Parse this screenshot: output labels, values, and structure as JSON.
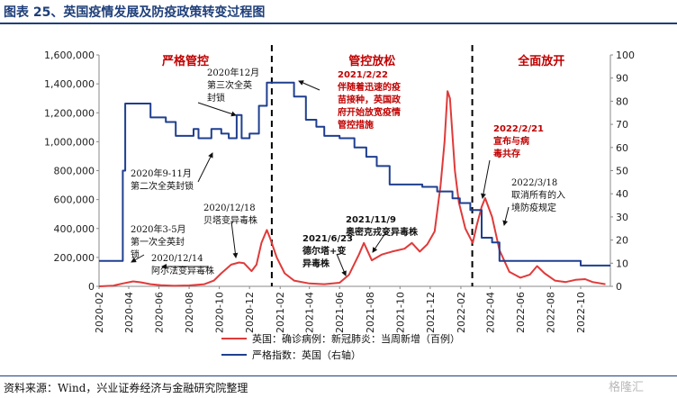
{
  "figure_title": "图表 25、英国疫情发展及防疫政策转变过程图",
  "source_note": "资料来源：Wind，兴业证券经济与金融研究院整理",
  "watermark": "格隆汇",
  "colors": {
    "cases": "#e03a3a",
    "index": "#1f3f8f",
    "title": "#1f3f7a",
    "phase": "#c00000"
  },
  "chart_data": {
    "type": "line",
    "y_left_ticks": [
      "0",
      "200,000",
      "400,000",
      "600,000",
      "800,000",
      "1,000,000",
      "1,200,000",
      "1,400,000",
      "1,600,000"
    ],
    "y_right_ticks": [
      "0",
      "10",
      "20",
      "30",
      "40",
      "50",
      "60",
      "70",
      "80",
      "90",
      "100"
    ],
    "ylim_left": [
      0,
      1600000
    ],
    "ylim_right": [
      0,
      100
    ],
    "xlim": [
      "2020-02-01",
      "2022-11-30"
    ],
    "x_tick_labels": [
      "2020-02",
      "2020-04",
      "2020-06",
      "2020-08",
      "2020-10",
      "2020-12",
      "2021-02",
      "2021-04",
      "2021-06",
      "2021-08",
      "2021-10",
      "2021-12",
      "2022-02",
      "2022-04",
      "2022-06",
      "2022-08",
      "2022-10"
    ],
    "phases": [
      {
        "label": "严格管控"
      },
      {
        "label": "管控放松"
      },
      {
        "label": "全面放开"
      }
    ],
    "phase_dividers": [
      "2021-01-15",
      "2022-02-24"
    ],
    "series": [
      {
        "name": "英国：确诊病例：新冠肺炎：当周新增（百例）",
        "axis": "left",
        "points": [
          [
            "2020-02-01",
            0
          ],
          [
            "2020-03-01",
            5000
          ],
          [
            "2020-03-20",
            20000
          ],
          [
            "2020-04-10",
            34000
          ],
          [
            "2020-04-25",
            28000
          ],
          [
            "2020-05-15",
            15000
          ],
          [
            "2020-06-05",
            8000
          ],
          [
            "2020-07-01",
            4000
          ],
          [
            "2020-08-01",
            6000
          ],
          [
            "2020-09-01",
            15000
          ],
          [
            "2020-09-20",
            40000
          ],
          [
            "2020-10-05",
            90000
          ],
          [
            "2020-10-25",
            150000
          ],
          [
            "2020-11-10",
            165000
          ],
          [
            "2020-11-20",
            160000
          ],
          [
            "2020-12-05",
            105000
          ],
          [
            "2020-12-15",
            150000
          ],
          [
            "2020-12-25",
            300000
          ],
          [
            "2021-01-05",
            390000
          ],
          [
            "2021-01-12",
            330000
          ],
          [
            "2021-01-25",
            200000
          ],
          [
            "2021-02-10",
            90000
          ],
          [
            "2021-03-01",
            40000
          ],
          [
            "2021-04-01",
            20000
          ],
          [
            "2021-05-01",
            15000
          ],
          [
            "2021-06-01",
            25000
          ],
          [
            "2021-06-20",
            80000
          ],
          [
            "2021-07-10",
            220000
          ],
          [
            "2021-07-20",
            300000
          ],
          [
            "2021-08-05",
            180000
          ],
          [
            "2021-08-25",
            220000
          ],
          [
            "2021-09-15",
            240000
          ],
          [
            "2021-10-10",
            260000
          ],
          [
            "2021-10-25",
            300000
          ],
          [
            "2021-11-10",
            240000
          ],
          [
            "2021-11-25",
            290000
          ],
          [
            "2021-12-10",
            380000
          ],
          [
            "2021-12-22",
            700000
          ],
          [
            "2021-12-30",
            1000000
          ],
          [
            "2022-01-05",
            1350000
          ],
          [
            "2022-01-10",
            1300000
          ],
          [
            "2022-01-20",
            800000
          ],
          [
            "2022-01-28",
            580000
          ],
          [
            "2022-02-10",
            400000
          ],
          [
            "2022-02-25",
            300000
          ],
          [
            "2022-03-05",
            420000
          ],
          [
            "2022-03-15",
            550000
          ],
          [
            "2022-03-22",
            610000
          ],
          [
            "2022-04-05",
            480000
          ],
          [
            "2022-04-20",
            250000
          ],
          [
            "2022-05-10",
            100000
          ],
          [
            "2022-06-01",
            60000
          ],
          [
            "2022-06-20",
            80000
          ],
          [
            "2022-07-05",
            140000
          ],
          [
            "2022-07-20",
            90000
          ],
          [
            "2022-08-10",
            40000
          ],
          [
            "2022-09-01",
            30000
          ],
          [
            "2022-09-20",
            45000
          ],
          [
            "2022-10-10",
            50000
          ],
          [
            "2022-10-25",
            30000
          ],
          [
            "2022-11-20",
            15000
          ]
        ]
      },
      {
        "name": "严格指数：英国（右轴）",
        "axis": "right",
        "points": [
          [
            "2020-02-01",
            11
          ],
          [
            "2020-03-10",
            11
          ],
          [
            "2020-03-20",
            50
          ],
          [
            "2020-03-25",
            79
          ],
          [
            "2020-05-10",
            79
          ],
          [
            "2020-05-15",
            73
          ],
          [
            "2020-06-15",
            71
          ],
          [
            "2020-07-05",
            65
          ],
          [
            "2020-07-20",
            65
          ],
          [
            "2020-08-10",
            68
          ],
          [
            "2020-08-20",
            64
          ],
          [
            "2020-09-15",
            68
          ],
          [
            "2020-10-05",
            66
          ],
          [
            "2020-10-20",
            64
          ],
          [
            "2020-11-05",
            74
          ],
          [
            "2020-11-15",
            64
          ],
          [
            "2020-12-01",
            66
          ],
          [
            "2020-12-20",
            78
          ],
          [
            "2021-01-05",
            88
          ],
          [
            "2021-02-15",
            88
          ],
          [
            "2021-03-01",
            82
          ],
          [
            "2021-03-25",
            72
          ],
          [
            "2021-04-15",
            69
          ],
          [
            "2021-05-01",
            65
          ],
          [
            "2021-06-01",
            64
          ],
          [
            "2021-07-01",
            60
          ],
          [
            "2021-07-25",
            56
          ],
          [
            "2021-08-15",
            52
          ],
          [
            "2021-09-10",
            44
          ],
          [
            "2021-10-10",
            44
          ],
          [
            "2021-11-15",
            43
          ],
          [
            "2021-12-15",
            41
          ],
          [
            "2022-01-15",
            38
          ],
          [
            "2022-01-30",
            36
          ],
          [
            "2022-02-20",
            33
          ],
          [
            "2022-03-15",
            21
          ],
          [
            "2022-04-05",
            19
          ],
          [
            "2022-04-20",
            11
          ],
          [
            "2022-06-01",
            11
          ],
          [
            "2022-09-01",
            11
          ],
          [
            "2022-10-01",
            9
          ],
          [
            "2022-11-30",
            9
          ]
        ]
      }
    ],
    "annotations": [
      {
        "id": "a1",
        "lines": [
          "2020年12月",
          "第三次全英",
          "封锁"
        ],
        "style": "plain"
      },
      {
        "id": "a2",
        "lines": [
          "2020年9-11月",
          "第二次全英封锁"
        ],
        "style": "plain"
      },
      {
        "id": "a3",
        "lines": [
          "2020年3-5月",
          "第一次全英封",
          "锁"
        ],
        "style": "plain"
      },
      {
        "id": "a4",
        "lines": [
          "2020/12/18",
          "贝塔变异毒株"
        ],
        "style": "plain"
      },
      {
        "id": "a5",
        "lines": [
          "2020/12/14",
          "阿尔法变异毒株"
        ],
        "style": "plain"
      },
      {
        "id": "a6",
        "lines": [
          "2021/2/22",
          "伴随着迅速的疫",
          "苗接种，英国政",
          "府开始放宽疫情",
          "管控措施"
        ],
        "style": "red"
      },
      {
        "id": "a7",
        "lines": [
          "2021/6/23",
          "德尔塔+变",
          "异毒株"
        ],
        "style": "bold"
      },
      {
        "id": "a8",
        "lines": [
          "2021/11/9",
          "奥密克戎变异毒株"
        ],
        "style": "bold"
      },
      {
        "id": "a9",
        "lines": [
          "2022/2/21",
          "宣布与病",
          "毒共存"
        ],
        "style": "red"
      },
      {
        "id": "a10",
        "lines": [
          "2022/3/18",
          "取消所有的入",
          "境防疫规定"
        ],
        "style": "plain"
      }
    ],
    "legend": {
      "placement": "bottom-center",
      "entries": [
        "英国：确诊病例：新冠肺炎：当周新增（百例）",
        "严格指数：英国（右轴）"
      ]
    }
  }
}
